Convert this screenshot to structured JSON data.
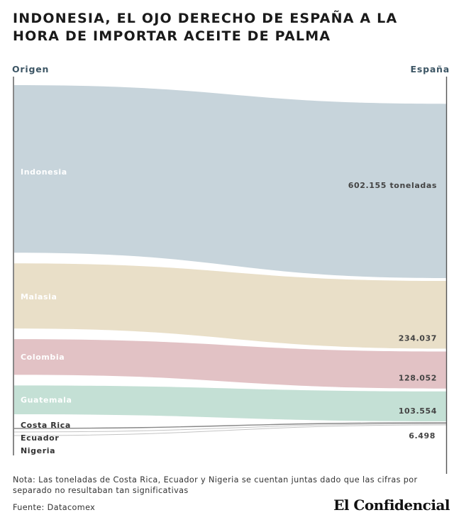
{
  "header": {
    "title": "INDONESIA, EL OJO DERECHO DE ESPAÑA A LA HORA DE IMPORTAR ACEITE DE PALMA"
  },
  "axes": {
    "left_label": "Origen",
    "right_label": "España"
  },
  "footer": {
    "note": "Nota: Las toneladas de Costa Rica, Ecuador y Nigeria se cuentan juntas dado que las cifras por separado no resultaban tan significativas",
    "source": "Fuente: Datacomex",
    "logo": "El Confidencial"
  },
  "chart_data": {
    "type": "sankey",
    "source_axis": "Origen",
    "target_axis": "España",
    "flows": [
      {
        "origin": "Indonesia",
        "value": 602155,
        "value_label": "602.155 toneladas",
        "color": "#c7d4db",
        "label_color": "#ffffff"
      },
      {
        "origin": "Malasia",
        "value": 234037,
        "value_label": "234.037",
        "color": "#e9dfc8",
        "label_color": "#ffffff"
      },
      {
        "origin": "Colombia",
        "value": 128052,
        "value_label": "128.052",
        "color": "#e2c2c5",
        "label_color": "#ffffff"
      },
      {
        "origin": "Guatemala",
        "value": 103554,
        "value_label": "103.554",
        "color": "#c4e0d5",
        "label_color": "#ffffff"
      },
      {
        "origin": "Costa Rica",
        "value_label": "6.498",
        "color": "#bbbbbb",
        "label_color": "#333333",
        "grouped": true
      },
      {
        "origin": "Ecuador",
        "color": "#bbbbbb",
        "label_color": "#333333",
        "grouped": true
      },
      {
        "origin": "Nigeria",
        "color": "#bbbbbb",
        "label_color": "#333333",
        "grouped": true
      }
    ],
    "grouped_total": 6498
  }
}
